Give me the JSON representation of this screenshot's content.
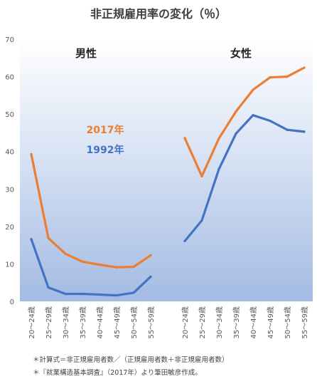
{
  "chart_data": {
    "type": "line",
    "title": "非正規雇用率の変化（％）",
    "ylim": [
      0,
      70
    ],
    "yticks": [
      0,
      10,
      20,
      30,
      40,
      50,
      60,
      70
    ],
    "grid": false,
    "categories": [
      "20～24歳",
      "25～29歳",
      "30～34歳",
      "35～39歳",
      "40～44歳",
      "45～49歳",
      "50～54歳",
      "55～59歳"
    ],
    "panels": [
      {
        "label": "男性",
        "series": [
          {
            "name": "2017年",
            "color": "#ed7d31",
            "values": [
              39.3,
              16.9,
              12.7,
              10.6,
              9.8,
              9.1,
              9.2,
              12.3
            ]
          },
          {
            "name": "1992年",
            "color": "#4472c4",
            "values": [
              16.6,
              3.7,
              2.0,
              2.0,
              1.8,
              1.6,
              2.3,
              6.6
            ]
          }
        ]
      },
      {
        "label": "女性",
        "series": [
          {
            "name": "2017年",
            "color": "#ed7d31",
            "values": [
              43.6,
              33.4,
              43.5,
              50.7,
              56.5,
              59.8,
              60.0,
              62.4
            ]
          },
          {
            "name": "1992年",
            "color": "#4472c4",
            "values": [
              16.1,
              21.6,
              35.3,
              44.8,
              49.7,
              48.2,
              45.8,
              45.3
            ]
          }
        ]
      }
    ],
    "legend": "inline-left"
  },
  "notes": [
    "＊計算式＝非正規雇用者数／（正規雇用者数＋非正規雇用者数）",
    "＊『就業構造基本調査』（2017年）より筆田敏彦作成。"
  ]
}
